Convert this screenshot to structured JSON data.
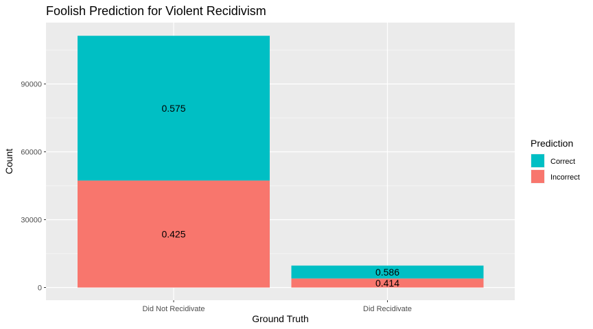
{
  "chart_data": {
    "type": "bar",
    "stacked": true,
    "title": "Foolish Prediction for Violent Recidivism",
    "xlabel": "Ground Truth",
    "ylabel": "Count",
    "categories": [
      "Did Not Recidivate",
      "Did Recidivate"
    ],
    "ylim": [
      0,
      111000
    ],
    "yticks": [
      0,
      30000,
      60000,
      90000
    ],
    "grid": true,
    "legend": {
      "title": "Prediction",
      "position": "right"
    },
    "series": [
      {
        "name": "Incorrect",
        "color": "#F8766D",
        "values": [
          47300,
          4000
        ],
        "labels": [
          "0.425",
          "0.414"
        ]
      },
      {
        "name": "Correct",
        "color": "#00BFC4",
        "values": [
          64000,
          5700
        ],
        "labels": [
          "0.575",
          "0.586"
        ]
      }
    ],
    "legend_order": [
      "Correct",
      "Incorrect"
    ]
  }
}
